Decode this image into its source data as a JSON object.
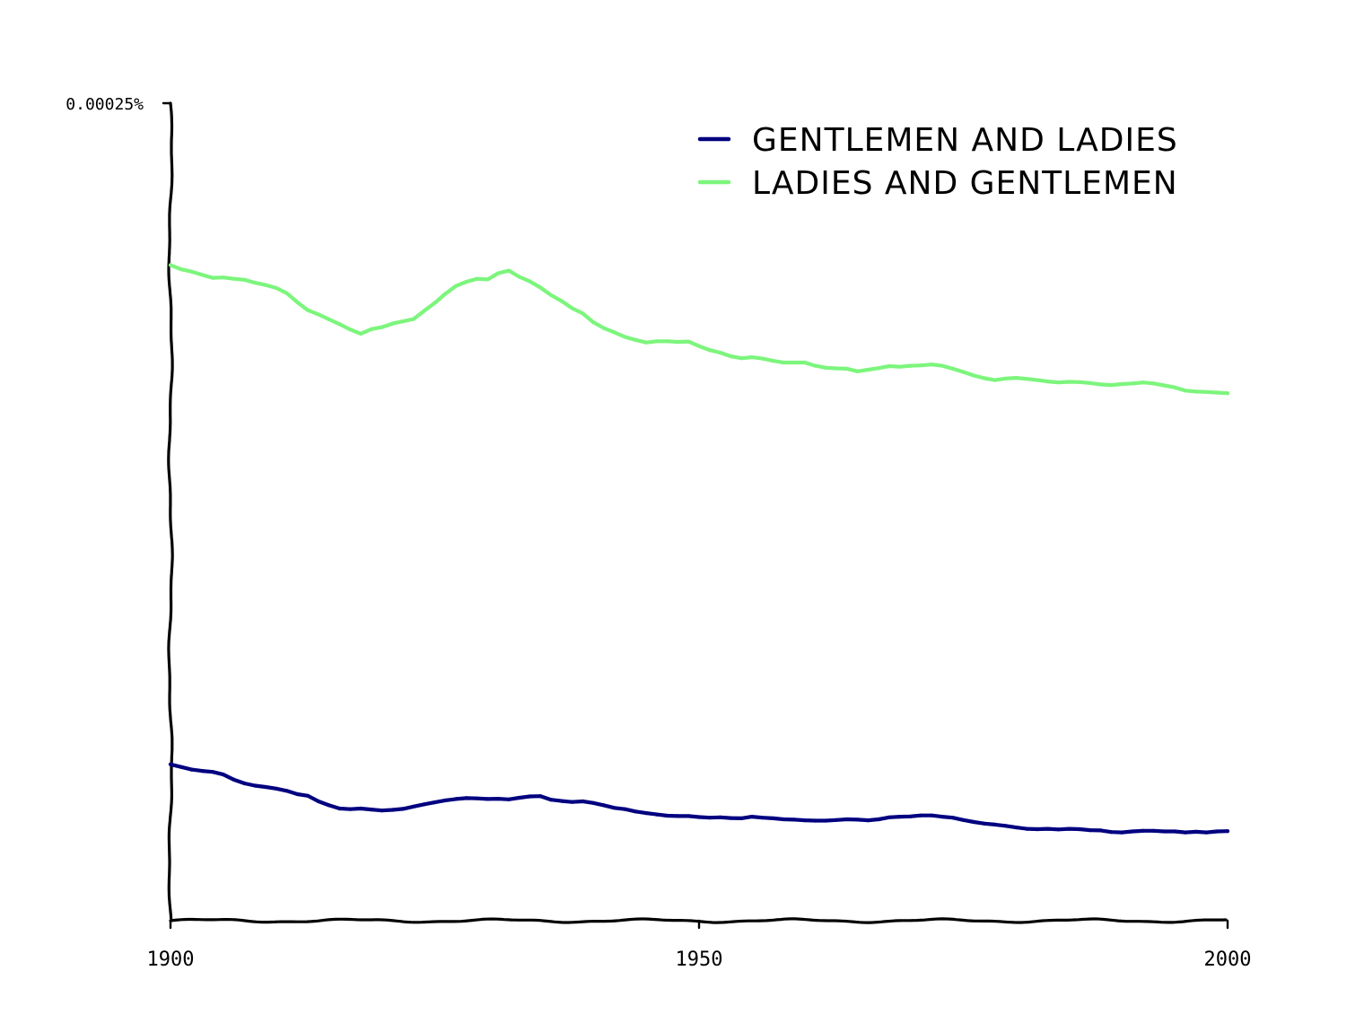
{
  "chart_data": {
    "type": "line",
    "title": "",
    "xlabel": "",
    "ylabel": "",
    "xlim": [
      1900,
      2000
    ],
    "ylim": [
      0,
      0.00025
    ],
    "x_ticks": [
      {
        "value": 1900,
        "label": "1900"
      },
      {
        "value": 1950,
        "label": "1950"
      },
      {
        "value": 2000,
        "label": "2000"
      }
    ],
    "y_ticks": [
      {
        "value": 0.00025,
        "label": "0.00025%"
      }
    ],
    "grid": false,
    "legend_position": "top-right",
    "style": "xkcd",
    "series": [
      {
        "name": "GENTLEMEN AND LADIES",
        "color": "#000080",
        "x": [
          1900,
          1901,
          1902,
          1903,
          1904,
          1905,
          1906,
          1907,
          1908,
          1909,
          1910,
          1911,
          1912,
          1913,
          1914,
          1915,
          1916,
          1917,
          1918,
          1919,
          1920,
          1921,
          1922,
          1923,
          1924,
          1925,
          1926,
          1927,
          1928,
          1929,
          1930,
          1931,
          1932,
          1933,
          1934,
          1935,
          1936,
          1937,
          1938,
          1939,
          1940,
          1941,
          1942,
          1943,
          1944,
          1945,
          1946,
          1947,
          1948,
          1949,
          1950,
          1951,
          1952,
          1953,
          1954,
          1955,
          1956,
          1957,
          1958,
          1959,
          1960,
          1961,
          1962,
          1963,
          1964,
          1965,
          1966,
          1967,
          1968,
          1969,
          1970,
          1971,
          1972,
          1973,
          1974,
          1975,
          1976,
          1977,
          1978,
          1979,
          1980,
          1981,
          1982,
          1983,
          1984,
          1985,
          1986,
          1987,
          1988,
          1989,
          1990,
          1991,
          1992,
          1993,
          1994,
          1995,
          1996,
          1997,
          1998,
          1999,
          2000
        ],
        "values": [
          4.78e-05,
          4.7e-05,
          4.62e-05,
          4.58e-05,
          4.55e-05,
          4.47e-05,
          4.31e-05,
          4.2e-05,
          4.13e-05,
          4.09e-05,
          4.04e-05,
          3.97e-05,
          3.87e-05,
          3.82e-05,
          3.65e-05,
          3.53e-05,
          3.43e-05,
          3.41e-05,
          3.43e-05,
          3.4e-05,
          3.37e-05,
          3.39e-05,
          3.42e-05,
          3.49e-05,
          3.56e-05,
          3.62e-05,
          3.68e-05,
          3.72e-05,
          3.75e-05,
          3.74e-05,
          3.72e-05,
          3.73e-05,
          3.71e-05,
          3.76e-05,
          3.8e-05,
          3.81e-05,
          3.7e-05,
          3.66e-05,
          3.63e-05,
          3.65e-05,
          3.6e-05,
          3.53e-05,
          3.45e-05,
          3.41e-05,
          3.34e-05,
          3.29e-05,
          3.25e-05,
          3.21e-05,
          3.2e-05,
          3.2e-05,
          3.17e-05,
          3.15e-05,
          3.16e-05,
          3.14e-05,
          3.13e-05,
          3.18e-05,
          3.15e-05,
          3.13e-05,
          3.1e-05,
          3.09e-05,
          3.07e-05,
          3.06e-05,
          3.06e-05,
          3.08e-05,
          3.1e-05,
          3.09e-05,
          3.07e-05,
          3.1e-05,
          3.16e-05,
          3.18e-05,
          3.19e-05,
          3.22e-05,
          3.22e-05,
          3.18e-05,
          3.15e-05,
          3.08e-05,
          3.02e-05,
          2.97e-05,
          2.94e-05,
          2.9e-05,
          2.85e-05,
          2.81e-05,
          2.8e-05,
          2.81e-05,
          2.79e-05,
          2.81e-05,
          2.8e-05,
          2.77e-05,
          2.76e-05,
          2.71e-05,
          2.7e-05,
          2.73e-05,
          2.75e-05,
          2.75e-05,
          2.73e-05,
          2.73e-05,
          2.7e-05,
          2.72e-05,
          2.7e-05,
          2.73e-05,
          2.74e-05
        ]
      },
      {
        "name": "LADIES AND GENTLEMEN",
        "color": "#7cf57c",
        "x": [
          1900,
          1901,
          1902,
          1903,
          1904,
          1905,
          1906,
          1907,
          1908,
          1909,
          1910,
          1911,
          1912,
          1913,
          1914,
          1915,
          1916,
          1917,
          1918,
          1919,
          1920,
          1921,
          1922,
          1923,
          1924,
          1925,
          1926,
          1927,
          1928,
          1929,
          1930,
          1931,
          1932,
          1933,
          1934,
          1935,
          1936,
          1937,
          1938,
          1939,
          1940,
          1941,
          1942,
          1943,
          1944,
          1945,
          1946,
          1947,
          1948,
          1949,
          1950,
          1951,
          1952,
          1953,
          1954,
          1955,
          1956,
          1957,
          1958,
          1959,
          1960,
          1961,
          1962,
          1963,
          1964,
          1965,
          1966,
          1967,
          1968,
          1969,
          1970,
          1971,
          1972,
          1973,
          1974,
          1975,
          1976,
          1977,
          1978,
          1979,
          1980,
          1981,
          1982,
          1983,
          1984,
          1985,
          1986,
          1987,
          1988,
          1989,
          1990,
          1991,
          1992,
          1993,
          1994,
          1995,
          1996,
          1997,
          1998,
          1999,
          2000
        ],
        "values": [
          0.0002005,
          0.0001992,
          0.0001985,
          0.0001975,
          0.0001966,
          0.0001967,
          0.0001963,
          0.000196,
          0.0001951,
          0.0001944,
          0.0001935,
          0.0001919,
          0.0001891,
          0.0001867,
          0.0001854,
          0.0001839,
          0.0001824,
          0.0001808,
          0.0001795,
          0.0001809,
          0.0001815,
          0.0001826,
          0.0001833,
          0.000184,
          0.0001865,
          0.0001889,
          0.0001917,
          0.0001941,
          0.0001954,
          0.0001963,
          0.0001961,
          0.000198,
          0.0001988,
          0.0001969,
          0.0001955,
          0.0001936,
          0.0001913,
          0.0001895,
          0.0001873,
          0.0001857,
          0.000183,
          0.0001812,
          0.0001799,
          0.0001785,
          0.0001776,
          0.0001768,
          0.0001772,
          0.0001772,
          0.000177,
          0.0001771,
          0.0001757,
          0.0001745,
          0.0001737,
          0.0001726,
          0.000172,
          0.0001723,
          0.0001719,
          0.0001712,
          0.0001707,
          0.0001707,
          0.0001707,
          0.0001697,
          0.0001691,
          0.0001689,
          0.0001688,
          0.000168,
          0.0001685,
          0.000169,
          0.0001696,
          0.0001694,
          0.0001697,
          0.0001698,
          0.0001701,
          0.0001697,
          0.0001688,
          0.0001678,
          0.0001667,
          0.0001659,
          0.0001653,
          0.0001658,
          0.000166,
          0.0001657,
          0.0001653,
          0.0001649,
          0.0001646,
          0.0001648,
          0.0001647,
          0.0001644,
          0.000164,
          0.0001638,
          0.0001641,
          0.0001643,
          0.0001646,
          0.0001643,
          0.0001637,
          0.0001631,
          0.0001621,
          0.0001618,
          0.0001617,
          0.0001615,
          0.0001613
        ]
      }
    ]
  }
}
